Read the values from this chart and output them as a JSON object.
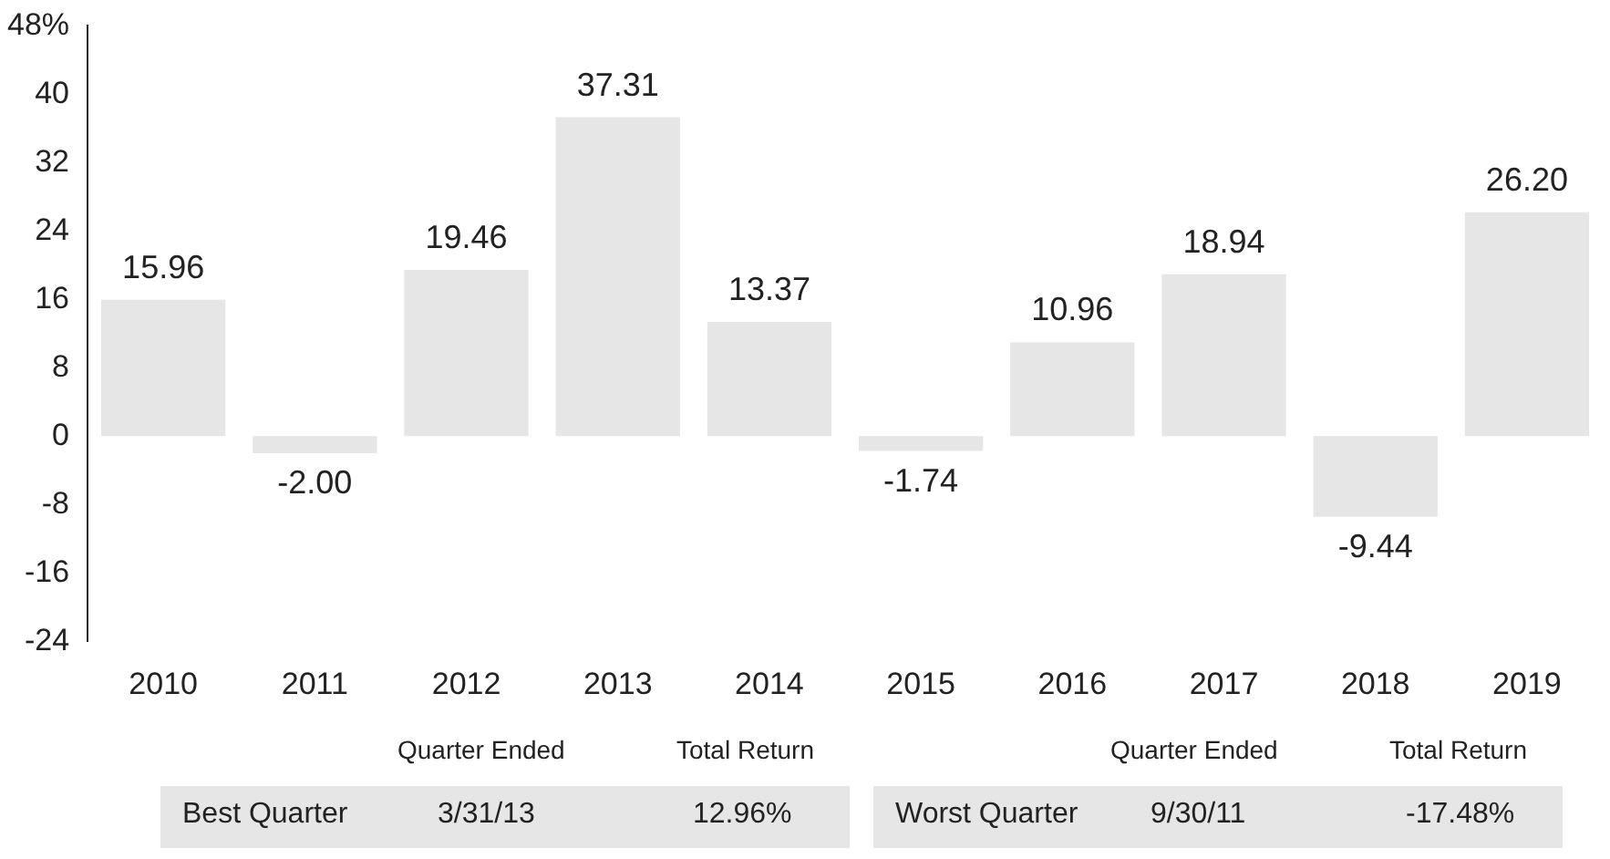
{
  "chart_data": {
    "type": "bar",
    "categories": [
      "2010",
      "2011",
      "2012",
      "2013",
      "2014",
      "2015",
      "2016",
      "2017",
      "2018",
      "2019"
    ],
    "values": [
      15.96,
      -2.0,
      19.46,
      37.31,
      13.37,
      -1.74,
      10.96,
      18.94,
      -9.44,
      26.2
    ],
    "value_labels": [
      "15.96",
      "-2.00",
      "19.46",
      "37.31",
      "13.37",
      "-1.74",
      "10.96",
      "18.94",
      "-9.44",
      "26.20"
    ],
    "color": "#e6e6e6",
    "ylim": [
      -24,
      48
    ],
    "yticks": [
      -24,
      -16,
      -8,
      0,
      8,
      16,
      24,
      32,
      40,
      {
        "value": 48,
        "label": "48%"
      }
    ],
    "grid": false,
    "legend": false,
    "annotations": [
      "Quarter Ended",
      "Total Return",
      "Best Quarter",
      "3/31/13",
      "12.96%",
      "Quarter Ended",
      "Total Return",
      "Worst Quarter",
      "9/30/11",
      "-17.48%"
    ]
  }
}
